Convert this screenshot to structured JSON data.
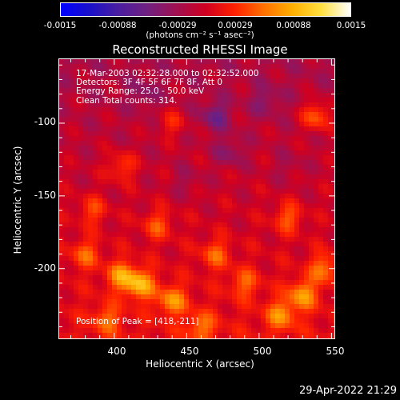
{
  "colorbar": {
    "ticks": [
      "-0.0015",
      "-0.00088",
      "-0.00029",
      "0.00029",
      "0.00088",
      "0.0015"
    ],
    "units": "(photons cm⁻² s⁻¹ asec⁻²)",
    "colors": [
      "#0000ff",
      "#1a10c8",
      "#4b1ea0",
      "#702080",
      "#a01050",
      "#d00020",
      "#ff2000",
      "#ff7000",
      "#ffb000",
      "#ffe040",
      "#ffffff"
    ]
  },
  "chart_data": {
    "type": "heatmap",
    "title": "Reconstructed RHESSI Image",
    "xlabel": "Heliocentric X (arcsec)",
    "ylabel": "Heliocentric Y (arcsec)",
    "xlim": [
      362,
      552
    ],
    "ylim": [
      -248,
      -56
    ],
    "x_ticks": [
      400,
      450,
      500,
      550
    ],
    "y_ticks": [
      -100,
      -150,
      -200
    ],
    "zlim": [
      -0.0015,
      0.0015
    ],
    "annotations": [
      "17-Mar-2003 02:32:28.000 to 02:32:52.000",
      "Detectors: 3F 4F 5F 6F 7F 8F, Att 0",
      "Energy Range: 25.0 - 50.0 keV",
      "Clean     Total counts: 314.",
      "Position of Peak = [418,-211]"
    ],
    "peak": [
      418,
      -211
    ],
    "blobs": [
      {
        "x": 418,
        "y": -211,
        "v": 1.0
      },
      {
        "x": 405,
        "y": -205,
        "v": 0.85
      },
      {
        "x": 440,
        "y": -222,
        "v": 0.8
      },
      {
        "x": 530,
        "y": -218,
        "v": 0.85
      },
      {
        "x": 515,
        "y": -232,
        "v": 0.75
      },
      {
        "x": 545,
        "y": -200,
        "v": 0.7
      },
      {
        "x": 470,
        "y": -190,
        "v": 0.6
      },
      {
        "x": 490,
        "y": -210,
        "v": 0.55
      },
      {
        "x": 380,
        "y": -190,
        "v": 0.6
      },
      {
        "x": 395,
        "y": -235,
        "v": 0.55
      },
      {
        "x": 460,
        "y": -240,
        "v": 0.6
      },
      {
        "x": 430,
        "y": -170,
        "v": 0.55
      },
      {
        "x": 520,
        "y": -165,
        "v": 0.6
      },
      {
        "x": 385,
        "y": -160,
        "v": 0.5
      },
      {
        "x": 540,
        "y": -95,
        "v": 0.8
      },
      {
        "x": 405,
        "y": -130,
        "v": 0.55
      },
      {
        "x": 440,
        "y": -100,
        "v": 0.45
      },
      {
        "x": 480,
        "y": -120,
        "v": -0.4
      },
      {
        "x": 470,
        "y": -95,
        "v": -0.55
      },
      {
        "x": 420,
        "y": -80,
        "v": -0.3
      },
      {
        "x": 505,
        "y": -85,
        "v": -0.35
      },
      {
        "x": 520,
        "y": -130,
        "v": -0.2
      },
      {
        "x": 450,
        "y": -140,
        "v": -0.25
      }
    ]
  },
  "timestamp": "29-Apr-2022 21:29"
}
